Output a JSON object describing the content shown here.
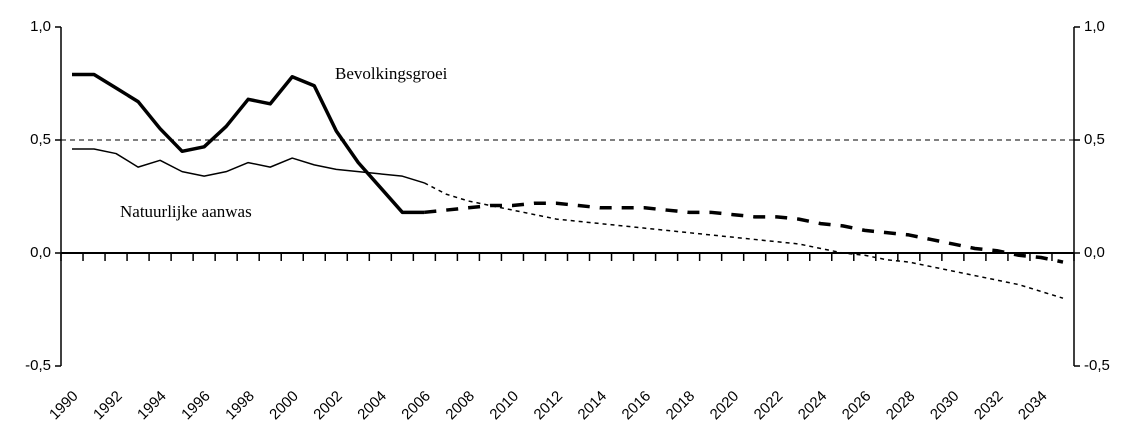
{
  "chart_data": {
    "type": "line",
    "categories": [
      "1990",
      null,
      "1992",
      null,
      "1994",
      null,
      "1996",
      null,
      "1998",
      null,
      "2000",
      null,
      "2002",
      null,
      "2004",
      null,
      "2006",
      null,
      "2008",
      null,
      "2010",
      null,
      "2012",
      null,
      "2014",
      null,
      "2016",
      null,
      "2018",
      null,
      "2020",
      null,
      "2022",
      null,
      "2024",
      null,
      "2026",
      null,
      "2028",
      null,
      "2030",
      null,
      "2032",
      null,
      "2034",
      null
    ],
    "series": [
      {
        "name": "Bevolkingsgroei",
        "color": "#000000",
        "width": 3.5,
        "values": [
          0.79,
          0.79,
          0.73,
          0.67,
          0.55,
          0.45,
          0.47,
          0.56,
          0.68,
          0.66,
          0.78,
          0.74,
          0.54,
          0.4,
          0.29,
          0.18,
          0.18,
          null,
          null,
          null,
          null,
          null,
          null,
          null,
          null,
          null,
          null,
          null,
          null,
          null,
          null,
          null,
          null,
          null,
          null,
          null,
          null,
          null,
          null,
          null,
          null,
          null,
          null,
          null,
          null,
          null
        ],
        "forecast_values": [
          null,
          null,
          null,
          null,
          null,
          null,
          null,
          null,
          null,
          null,
          null,
          null,
          null,
          null,
          null,
          null,
          0.18,
          0.19,
          0.2,
          0.21,
          0.21,
          0.22,
          0.22,
          0.21,
          0.2,
          0.2,
          0.2,
          0.19,
          0.18,
          0.18,
          0.17,
          0.16,
          0.16,
          0.15,
          0.13,
          0.12,
          0.1,
          0.09,
          0.08,
          0.06,
          0.04,
          0.02,
          0.01,
          -0.01,
          -0.02,
          -0.04
        ],
        "forecast_dash": "12 10"
      },
      {
        "name": "Natuurlijke aanwas",
        "color": "#000000",
        "width": 1.5,
        "values": [
          0.46,
          0.46,
          0.44,
          0.38,
          0.41,
          0.36,
          0.34,
          0.36,
          0.4,
          0.38,
          0.42,
          0.39,
          0.37,
          0.36,
          0.35,
          0.34,
          0.31,
          null,
          null,
          null,
          null,
          null,
          null,
          null,
          null,
          null,
          null,
          null,
          null,
          null,
          null,
          null,
          null,
          null,
          null,
          null,
          null,
          null,
          null,
          null,
          null,
          null,
          null,
          null,
          null,
          null
        ],
        "forecast_values": [
          null,
          null,
          null,
          null,
          null,
          null,
          null,
          null,
          null,
          null,
          null,
          null,
          null,
          null,
          null,
          null,
          0.31,
          0.26,
          0.23,
          0.21,
          0.19,
          0.17,
          0.15,
          0.14,
          0.13,
          0.12,
          0.11,
          0.1,
          0.09,
          0.08,
          0.07,
          0.06,
          0.05,
          0.04,
          0.02,
          0.0,
          -0.01,
          -0.03,
          -0.04,
          -0.06,
          -0.08,
          -0.1,
          -0.12,
          -0.14,
          -0.17,
          -0.2
        ],
        "forecast_dash": "4 4"
      }
    ],
    "ylim": [
      -0.5,
      1.0
    ],
    "yticks": [
      {
        "value": -0.5,
        "label": "-0,5"
      },
      {
        "value": 0,
        "label": "0,0"
      },
      {
        "value": 0.5,
        "label": "0,5"
      },
      {
        "value": 1.0,
        "label": "1,0"
      }
    ],
    "y2lim": [
      -0.5,
      1.0
    ],
    "y2ticks": [
      {
        "value": -0.5,
        "label": "-0,5"
      },
      {
        "value": 0,
        "label": "0,0"
      },
      {
        "value": 0.5,
        "label": "0,5"
      },
      {
        "value": 1.0,
        "label": "1,0"
      }
    ],
    "reference_line": 0.5,
    "grid": false
  }
}
